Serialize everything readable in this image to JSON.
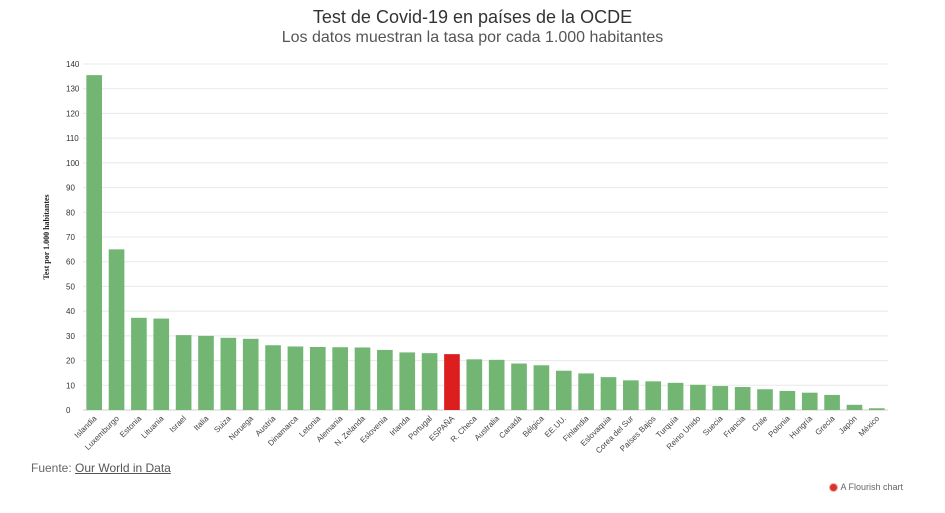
{
  "header": {
    "title": "Test de Covid-19 en países de la OCDE",
    "subtitle": "Los datos muestran la tasa por cada 1.000 habitantes"
  },
  "footer": {
    "source_prefix": "Fuente:",
    "source_link": "Our World in Data",
    "credit": "A Flourish chart"
  },
  "colors": {
    "bar": "#73b674",
    "highlight": "#dc1e1e",
    "grid": "#e8e8e8"
  },
  "chart_data": {
    "type": "bar",
    "title": "Test de Covid-19 en países de la OCDE",
    "subtitle": "Los datos muestran la tasa por cada 1.000 habitantes",
    "xlabel": "",
    "ylabel": "Test por 1.000 habitantes",
    "ylim": [
      0,
      140
    ],
    "yticks": [
      0,
      10,
      20,
      30,
      40,
      50,
      60,
      70,
      80,
      90,
      100,
      110,
      120,
      130,
      140
    ],
    "grid": true,
    "highlight": "ESPAÑA",
    "categories": [
      "Islandia",
      "Luxemburgo",
      "Estonia",
      "Lituania",
      "Israel",
      "Italia",
      "Suiza",
      "Noruega",
      "Austria",
      "Dinamarca",
      "Letonia",
      "Alemania",
      "N. Zelanda",
      "Eslovenia",
      "Irlanda",
      "Portugal",
      "ESPAÑA",
      "R. Checa",
      "Australia",
      "Canadá",
      "Bélgica",
      "EE.UU.",
      "Finlandia",
      "Eslovaquia",
      "Corea del Sur",
      "Países Bajos",
      "Turquía",
      "Reino Unido",
      "Suecia",
      "Francia",
      "Chile",
      "Polonia",
      "Hungría",
      "Grecia",
      "Japón",
      "México"
    ],
    "values": [
      135.5,
      65,
      37.3,
      37,
      30.3,
      30,
      29.2,
      28.8,
      26.2,
      25.7,
      25.5,
      25.4,
      25.3,
      24.3,
      23.3,
      23,
      22.6,
      20.5,
      20.3,
      18.8,
      18.1,
      15.9,
      14.8,
      13.3,
      12,
      11.6,
      11,
      10.2,
      9.7,
      9.3,
      8.4,
      7.7,
      7,
      6.1,
      2.1,
      0.7
    ]
  }
}
